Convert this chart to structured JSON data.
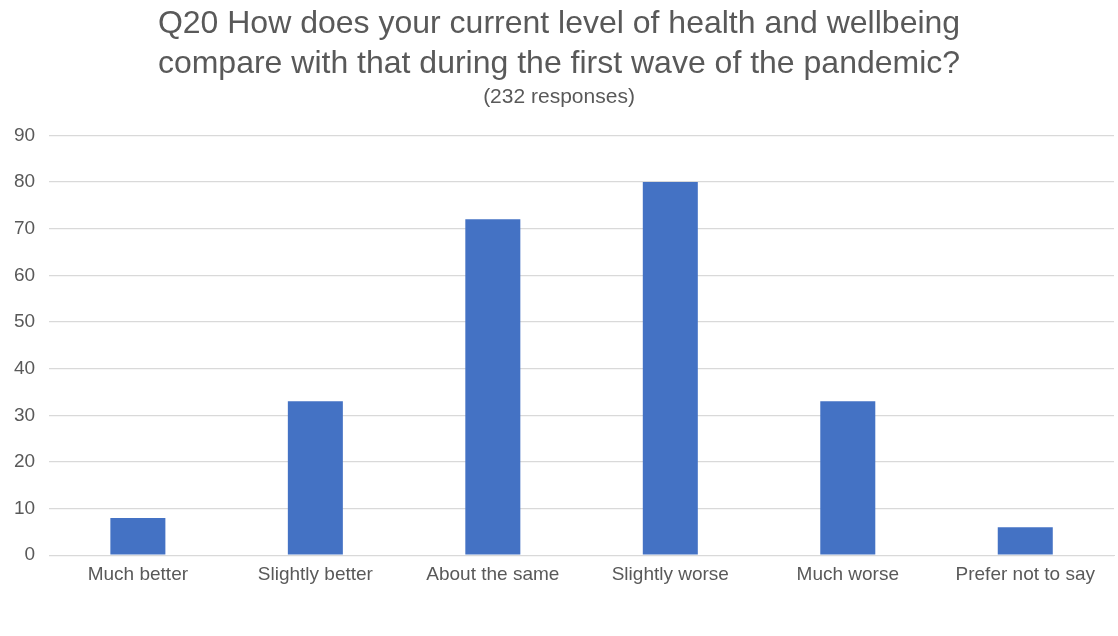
{
  "chart_data": {
    "type": "bar",
    "title": "Q20 How does your current level of health and wellbeing compare with that during the first wave of the pandemic?",
    "subtitle": "(232 responses)",
    "categories": [
      "Much better",
      "Slightly better",
      "About the same",
      "Slightly worse",
      "Much worse",
      "Prefer not to say"
    ],
    "values": [
      8,
      33,
      72,
      80,
      33,
      6
    ],
    "color": "#4472c4",
    "ylim": [
      0,
      90
    ],
    "yticks": [
      0,
      10,
      20,
      30,
      40,
      50,
      60,
      70,
      80,
      90
    ],
    "grid": "y"
  }
}
